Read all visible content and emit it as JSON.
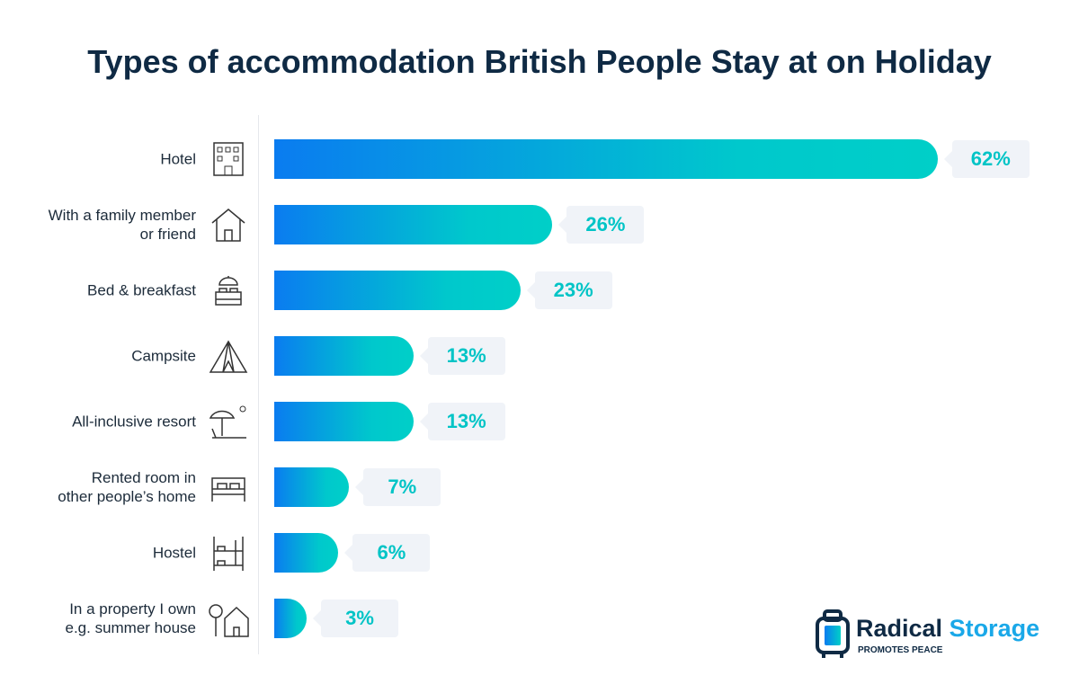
{
  "chart_data": {
    "type": "bar",
    "orientation": "horizontal",
    "title": "Types of accommodation British People Stay at on Holiday",
    "categories": [
      {
        "lines": [
          "Hotel"
        ],
        "icon": "hotel-icon"
      },
      {
        "lines": [
          "With a family member",
          "or friend"
        ],
        "icon": "house-icon"
      },
      {
        "lines": [
          "Bed & breakfast"
        ],
        "icon": "bed-breakfast-icon"
      },
      {
        "lines": [
          "Campsite"
        ],
        "icon": "tent-icon"
      },
      {
        "lines": [
          "All-inclusive resort"
        ],
        "icon": "beach-umbrella-icon"
      },
      {
        "lines": [
          "Rented room in",
          "other people’s home"
        ],
        "icon": "bed-icon"
      },
      {
        "lines": [
          "Hostel"
        ],
        "icon": "bunk-bed-icon"
      },
      {
        "lines": [
          "In a property I own",
          "e.g. summer house"
        ],
        "icon": "tree-house-icon"
      }
    ],
    "values": [
      62,
      26,
      23,
      13,
      13,
      7,
      6,
      3
    ],
    "labels": [
      "62%",
      "26%",
      "23%",
      "13%",
      "13%",
      "7%",
      "6%",
      "3%"
    ],
    "unit": "%",
    "grid": false,
    "colors": {
      "gradient_start": "#0a7cf0",
      "gradient_end": "#00cfc8",
      "label_text": "#00c4c6",
      "label_bg": "#f0f3f8"
    }
  },
  "logo": {
    "brand_a": "Radical",
    "brand_b": "Storage",
    "tagline": "PROMOTES PEACE"
  }
}
